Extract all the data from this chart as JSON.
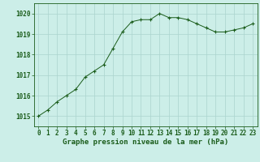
{
  "x": [
    0,
    1,
    2,
    3,
    4,
    5,
    6,
    7,
    8,
    9,
    10,
    11,
    12,
    13,
    14,
    15,
    16,
    17,
    18,
    19,
    20,
    21,
    22,
    23
  ],
  "y": [
    1015.0,
    1015.3,
    1015.7,
    1016.0,
    1016.3,
    1016.9,
    1017.2,
    1017.5,
    1018.3,
    1019.1,
    1019.6,
    1019.7,
    1019.7,
    1020.0,
    1019.8,
    1019.8,
    1019.7,
    1019.5,
    1019.3,
    1019.1,
    1019.1,
    1019.2,
    1019.3,
    1019.5
  ],
  "xlabel": "Graphe pression niveau de la mer (hPa)",
  "ylim": [
    1014.5,
    1020.5
  ],
  "xlim": [
    -0.5,
    23.5
  ],
  "yticks": [
    1015,
    1016,
    1017,
    1018,
    1019,
    1020
  ],
  "xticks": [
    0,
    1,
    2,
    3,
    4,
    5,
    6,
    7,
    8,
    9,
    10,
    11,
    12,
    13,
    14,
    15,
    16,
    17,
    18,
    19,
    20,
    21,
    22,
    23
  ],
  "line_color": "#1a5c1a",
  "marker_color": "#1a5c1a",
  "bg_color": "#cceee8",
  "grid_color": "#aad4ce",
  "axis_label_color": "#1a5c1a",
  "tick_label_color": "#1a5c1a",
  "xlabel_fontsize": 6.5,
  "tick_fontsize": 5.5,
  "ylabel_fontsize": 5.5
}
